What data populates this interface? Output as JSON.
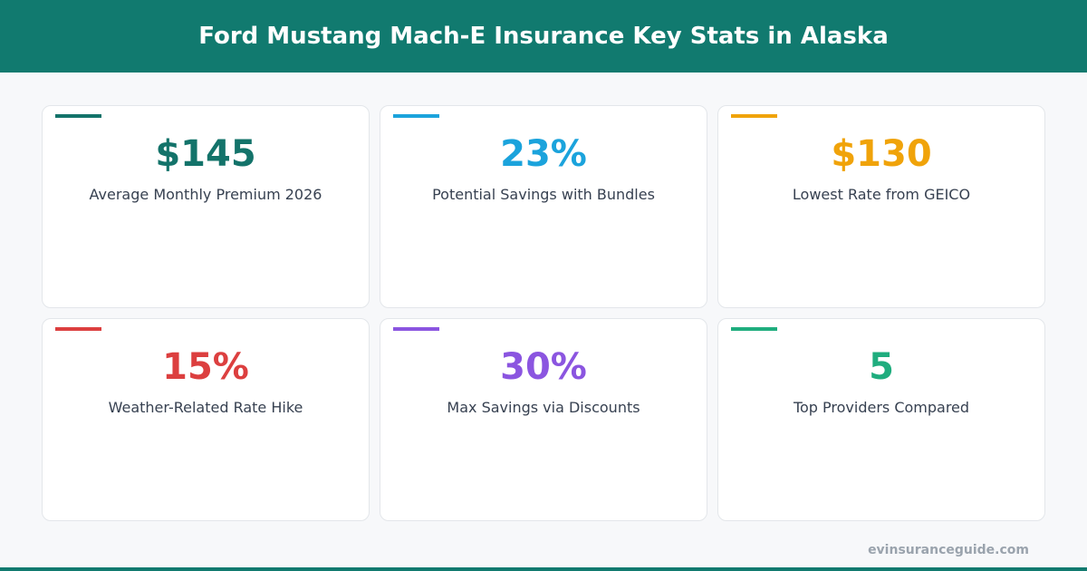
{
  "header": {
    "title": "Ford Mustang Mach-E Insurance Key Stats in Alaska"
  },
  "cards": [
    {
      "value": "$145",
      "label": "Average Monthly Premium 2026",
      "color": "#13736a"
    },
    {
      "value": "23%",
      "label": "Potential Savings with Bundles",
      "color": "#1ba3dc"
    },
    {
      "value": "$130",
      "label": "Lowest Rate from GEICO",
      "color": "#f0a30a"
    },
    {
      "value": "15%",
      "label": "Weather-Related Rate Hike",
      "color": "#dc3f3f"
    },
    {
      "value": "30%",
      "label": "Max Savings via Discounts",
      "color": "#8b55e0"
    },
    {
      "value": "5",
      "label": "Top Providers Compared",
      "color": "#1fad7e"
    }
  ],
  "footer": {
    "site": "evinsuranceguide.com"
  }
}
